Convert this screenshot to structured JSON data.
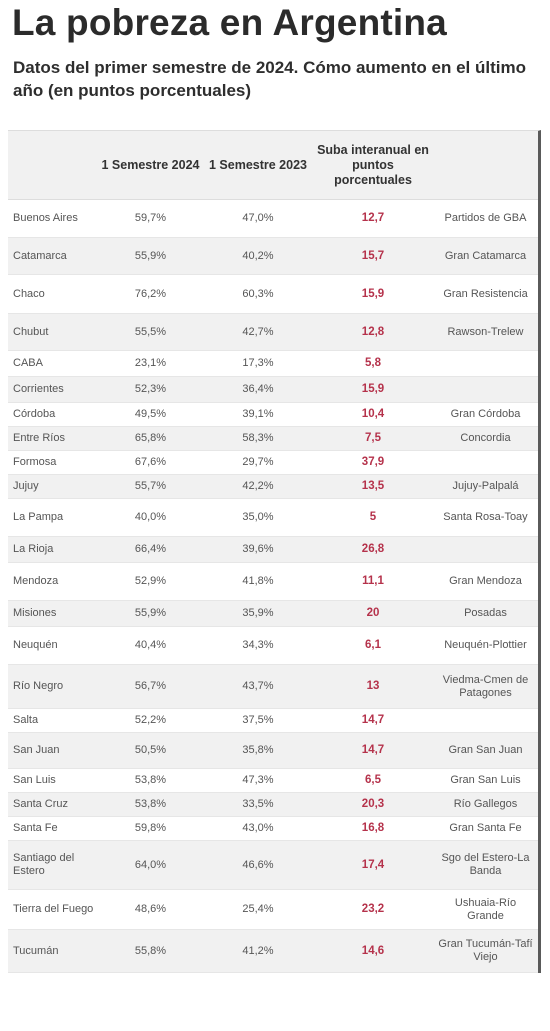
{
  "title": "La pobreza en Argentina",
  "subtitle": "Datos del primer semestre de 2024. Cómo aumento en el último año (en puntos porcentuales)",
  "colors": {
    "rise": "#b5324b",
    "stripe": "#f1f1f1"
  },
  "headers": [
    "",
    "1 Semestre 2024",
    "1 Semestre 2023",
    "Suba interanual en puntos porcentuales",
    ""
  ],
  "rows": [
    {
      "province": "Buenos Aires",
      "s2024": "59,7%",
      "s2023": "47,0%",
      "rise": "12,7",
      "city": "Partidos de GBA"
    },
    {
      "province": "Catamarca",
      "s2024": "55,9%",
      "s2023": "40,2%",
      "rise": "15,7",
      "city": "Gran Catamarca"
    },
    {
      "province": "Chaco",
      "s2024": "76,2%",
      "s2023": "60,3%",
      "rise": "15,9",
      "city": "Gran Resistencia"
    },
    {
      "province": "Chubut",
      "s2024": "55,5%",
      "s2023": "42,7%",
      "rise": "12,8",
      "city": "Rawson-Trelew"
    },
    {
      "province": "CABA",
      "s2024": "23,1%",
      "s2023": "17,3%",
      "rise": "5,8",
      "city": ""
    },
    {
      "province": "Corrientes",
      "s2024": "52,3%",
      "s2023": "36,4%",
      "rise": "15,9",
      "city": ""
    },
    {
      "province": "Córdoba",
      "s2024": "49,5%",
      "s2023": "39,1%",
      "rise": "10,4",
      "city": "Gran Córdoba"
    },
    {
      "province": "Entre Ríos",
      "s2024": "65,8%",
      "s2023": "58,3%",
      "rise": "7,5",
      "city": "Concordia"
    },
    {
      "province": "Formosa",
      "s2024": "67,6%",
      "s2023": "29,7%",
      "rise": "37,9",
      "city": ""
    },
    {
      "province": "Jujuy",
      "s2024": "55,7%",
      "s2023": "42,2%",
      "rise": "13,5",
      "city": "Jujuy-Palpalá"
    },
    {
      "province": "La Pampa",
      "s2024": "40,0%",
      "s2023": "35,0%",
      "rise": "5",
      "city": "Santa Rosa-Toay"
    },
    {
      "province": "La Rioja",
      "s2024": "66,4%",
      "s2023": "39,6%",
      "rise": "26,8",
      "city": ""
    },
    {
      "province": "Mendoza",
      "s2024": "52,9%",
      "s2023": "41,8%",
      "rise": "11,1",
      "city": "Gran Mendoza"
    },
    {
      "province": "Misiones",
      "s2024": "55,9%",
      "s2023": "35,9%",
      "rise": "20",
      "city": "Posadas"
    },
    {
      "province": "Neuquén",
      "s2024": "40,4%",
      "s2023": "34,3%",
      "rise": "6,1",
      "city": "Neuquén-Plottier"
    },
    {
      "province": "Río Negro",
      "s2024": "56,7%",
      "s2023": "43,7%",
      "rise": "13",
      "city": "Viedma-Cmen de Patagones"
    },
    {
      "province": "Salta",
      "s2024": "52,2%",
      "s2023": "37,5%",
      "rise": "14,7",
      "city": ""
    },
    {
      "province": "San Juan",
      "s2024": "50,5%",
      "s2023": "35,8%",
      "rise": "14,7",
      "city": "Gran San Juan"
    },
    {
      "province": "San Luis",
      "s2024": "53,8%",
      "s2023": "47,3%",
      "rise": "6,5",
      "city": "Gran San Luis"
    },
    {
      "province": "Santa Cruz",
      "s2024": "53,8%",
      "s2023": "33,5%",
      "rise": "20,3",
      "city": "Río Gallegos"
    },
    {
      "province": "Santa Fe",
      "s2024": "59,8%",
      "s2023": "43,0%",
      "rise": "16,8",
      "city": "Gran Santa Fe"
    },
    {
      "province": "Santiago del Estero",
      "s2024": "64,0%",
      "s2023": "46,6%",
      "rise": "17,4",
      "city": "Sgo del Estero-La Banda"
    },
    {
      "province": "Tierra del Fuego",
      "s2024": "48,6%",
      "s2023": "25,4%",
      "rise": "23,2",
      "city": "Ushuaia-Río Grande"
    },
    {
      "province": "Tucumán",
      "s2024": "55,8%",
      "s2023": "41,2%",
      "rise": "14,6",
      "city": "Gran Tucumán-Tafí Viejo"
    }
  ]
}
